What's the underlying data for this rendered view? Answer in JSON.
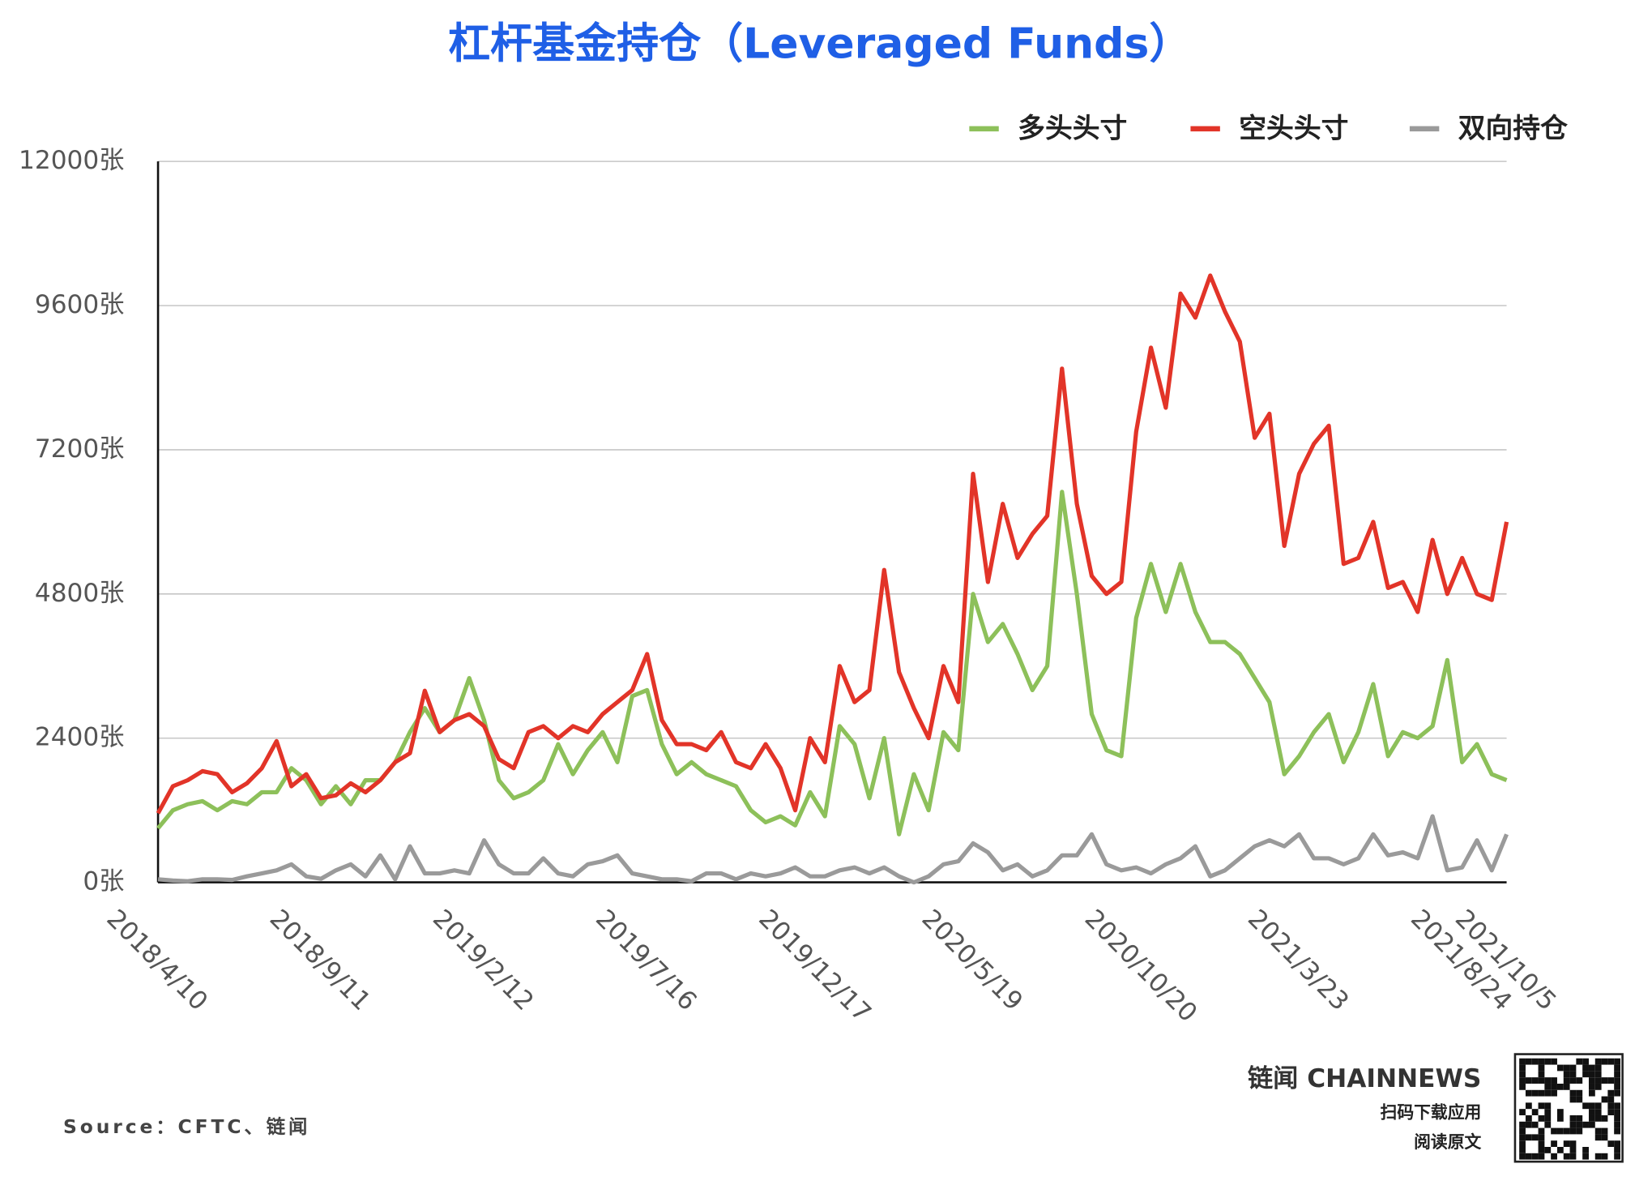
{
  "chart_data": {
    "type": "line",
    "title": "杠杆基金持仓（Leveraged Funds）",
    "source": "Source：CFTC、链闻",
    "brand": "链闻 CHAINNEWS",
    "brand_lines": [
      "扫码下载应用",
      "阅读原文"
    ],
    "legend": "top-right",
    "grid": true,
    "categories": [
      "2018/4/10",
      null,
      null,
      null,
      null,
      null,
      null,
      null,
      null,
      null,
      null,
      "2018/9/11",
      null,
      null,
      null,
      null,
      null,
      null,
      null,
      null,
      null,
      null,
      "2019/2/12",
      null,
      null,
      null,
      null,
      null,
      null,
      null,
      null,
      null,
      null,
      "2019/7/16",
      null,
      null,
      null,
      null,
      null,
      null,
      null,
      null,
      null,
      null,
      "2019/12/17",
      null,
      null,
      null,
      null,
      null,
      null,
      null,
      null,
      null,
      null,
      "2020/5/19",
      null,
      null,
      null,
      null,
      null,
      null,
      null,
      null,
      null,
      null,
      "2020/10/20",
      null,
      null,
      null,
      null,
      null,
      null,
      null,
      null,
      null,
      null,
      "2021/3/23",
      null,
      null,
      null,
      null,
      null,
      null,
      null,
      null,
      null,
      null,
      "2021/8/24",
      null,
      null,
      "2021/10/5"
    ],
    "ylim": [
      0,
      12000
    ],
    "yticks": [
      {
        "value": 0,
        "label": "0张"
      },
      {
        "value": 2400,
        "label": "2400张"
      },
      {
        "value": 4800,
        "label": "4800张"
      },
      {
        "value": 7200,
        "label": "7200张"
      },
      {
        "value": 9600,
        "label": "9600张"
      },
      {
        "value": 12000,
        "label": "12000张"
      }
    ],
    "series": [
      {
        "name": "多头头寸",
        "color": "#8dc05a",
        "values": [
          900,
          1200,
          1300,
          1350,
          1200,
          1350,
          1300,
          1500,
          1500,
          1900,
          1700,
          1300,
          1600,
          1300,
          1700,
          1700,
          2000,
          2500,
          2900,
          2500,
          2700,
          3400,
          2700,
          1700,
          1400,
          1500,
          1700,
          2300,
          1800,
          2200,
          2500,
          2000,
          3100,
          3200,
          2300,
          1800,
          2000,
          1800,
          1700,
          1600,
          1200,
          1000,
          1100,
          950,
          1500,
          1100,
          2600,
          2300,
          1400,
          2400,
          800,
          1800,
          1200,
          2500,
          2200,
          4800,
          4000,
          4300,
          3800,
          3200,
          3600,
          6500,
          4800,
          2800,
          2200,
          2100,
          4400,
          5300,
          4500,
          5300,
          4500,
          4000,
          4000,
          3800,
          3400,
          3000,
          1800,
          2100,
          2500,
          2800,
          2000,
          2500,
          3300,
          2100,
          2500,
          2400,
          2600,
          3700,
          2000,
          2300,
          1800,
          1700
        ]
      },
      {
        "name": "空头头寸",
        "color": "#e23428",
        "values": [
          1150,
          1600,
          1700,
          1850,
          1800,
          1500,
          1650,
          1900,
          2350,
          1600,
          1800,
          1400,
          1450,
          1650,
          1500,
          1700,
          2000,
          2150,
          3190,
          2500,
          2700,
          2800,
          2600,
          2050,
          1900,
          2500,
          2600,
          2400,
          2600,
          2500,
          2800,
          3000,
          3200,
          3800,
          2700,
          2300,
          2300,
          2200,
          2500,
          2000,
          1900,
          2300,
          1900,
          1200,
          2400,
          2000,
          3600,
          3000,
          3200,
          5200,
          3500,
          2900,
          2400,
          3600,
          3000,
          6800,
          5000,
          6300,
          5400,
          5800,
          6100,
          8550,
          6300,
          5100,
          4800,
          5000,
          7500,
          8900,
          7900,
          9800,
          9400,
          10100,
          9500,
          9000,
          7400,
          7800,
          5600,
          6800,
          7300,
          7600,
          5300,
          5400,
          6000,
          4900,
          5000,
          4500,
          5700,
          4800,
          5400,
          4800,
          4700,
          6000
        ]
      },
      {
        "name": "双向持仓",
        "color": "#9a9a9a",
        "values": [
          50,
          30,
          20,
          50,
          50,
          40,
          100,
          150,
          200,
          300,
          100,
          60,
          200,
          300,
          100,
          450,
          50,
          600,
          150,
          150,
          200,
          150,
          700,
          300,
          150,
          150,
          400,
          150,
          100,
          300,
          350,
          450,
          150,
          100,
          50,
          50,
          20,
          150,
          150,
          50,
          150,
          100,
          150,
          250,
          100,
          100,
          200,
          250,
          150,
          250,
          100,
          0,
          100,
          300,
          350,
          650,
          500,
          200,
          300,
          100,
          200,
          450,
          450,
          800,
          300,
          200,
          250,
          150,
          300,
          400,
          600,
          100,
          200,
          400,
          600,
          700,
          600,
          800,
          400,
          400,
          300,
          400,
          800,
          450,
          500,
          400,
          1100,
          200,
          250,
          700,
          200,
          800
        ]
      }
    ]
  }
}
